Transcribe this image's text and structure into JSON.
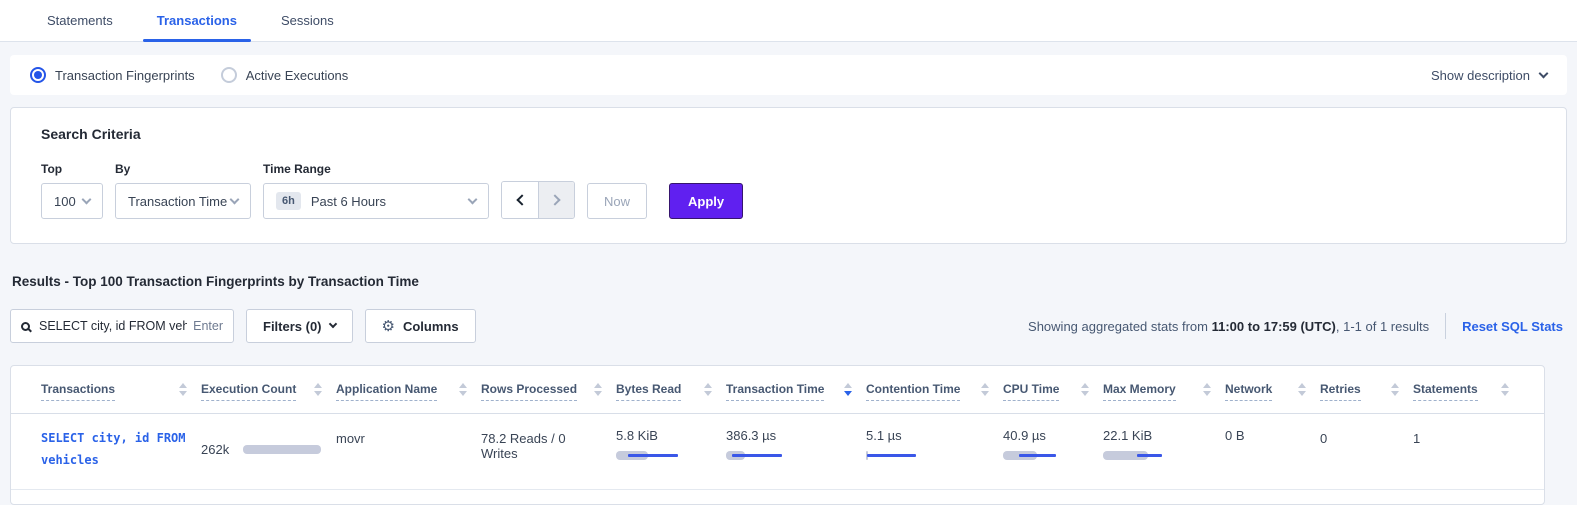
{
  "tabs": {
    "items": [
      {
        "label": "Statements",
        "active": false
      },
      {
        "label": "Transactions",
        "active": true
      },
      {
        "label": "Sessions",
        "active": false
      }
    ]
  },
  "view_toggle": {
    "options": [
      {
        "label": "Transaction Fingerprints",
        "selected": true
      },
      {
        "label": "Active Executions",
        "selected": false
      }
    ],
    "show_description_label": "Show description"
  },
  "search_criteria": {
    "title": "Search Criteria",
    "top": {
      "label": "Top",
      "value": "100"
    },
    "by": {
      "label": "By",
      "value": "Transaction Time"
    },
    "time_range": {
      "label": "Time Range",
      "badge": "6h",
      "value": "Past 6 Hours"
    },
    "now_label": "Now",
    "apply_label": "Apply"
  },
  "results": {
    "heading": "Results - Top 100 Transaction Fingerprints by Transaction Time",
    "search": {
      "value": "SELECT city, id FROM vehicles W",
      "enter_label": "Enter"
    },
    "filters_label": "Filters (0)",
    "columns_label": "Columns",
    "stats": {
      "prefix": "Showing aggregated stats from ",
      "bold": "11:00 to 17:59 (UTC)",
      "suffix": ", 1-1 of 1 results"
    },
    "reset_link": "Reset SQL Stats"
  },
  "table": {
    "columns": [
      {
        "label": "Transactions",
        "sort": "none"
      },
      {
        "label": "Execution Count",
        "sort": "none"
      },
      {
        "label": "Application Name",
        "sort": "none"
      },
      {
        "label": "Rows Processed",
        "sort": "none"
      },
      {
        "label": "Bytes Read",
        "sort": "none"
      },
      {
        "label": "Transaction Time",
        "sort": "desc"
      },
      {
        "label": "Contention Time",
        "sort": "none"
      },
      {
        "label": "CPU Time",
        "sort": "none"
      },
      {
        "label": "Max Memory",
        "sort": "none"
      },
      {
        "label": "Network",
        "sort": "none"
      },
      {
        "label": "Retries",
        "sort": "none"
      },
      {
        "label": "Statements",
        "sort": "none"
      }
    ],
    "row": {
      "transaction_text": "SELECT city, id FROM\nvehicles",
      "execution_count": {
        "value": "262k",
        "bar": {
          "track": 100
        }
      },
      "application_name": {
        "value": "movr"
      },
      "rows_processed": {
        "value": "78.2 Reads / 0 Writes"
      },
      "bytes_read": {
        "value": "5.8 KiB",
        "bar": {
          "track": 52,
          "line": [
            20,
            100
          ]
        }
      },
      "transaction_time": {
        "value": "386.3 µs",
        "bar": {
          "track": 30,
          "line": [
            10,
            90
          ]
        }
      },
      "contention_time": {
        "value": "5.1 µs",
        "bar": {
          "track": 3,
          "line": [
            1,
            80
          ]
        }
      },
      "cpu_time": {
        "value": "40.9 µs",
        "bar": {
          "track": 55,
          "line": [
            25,
            85
          ]
        }
      },
      "max_memory": {
        "value": "22.1 KiB",
        "bar": {
          "track": 72,
          "line": [
            55,
            95
          ]
        }
      },
      "network": {
        "value": "0 B"
      },
      "retries": {
        "value": "0"
      },
      "statements": {
        "value": "1"
      }
    }
  }
}
